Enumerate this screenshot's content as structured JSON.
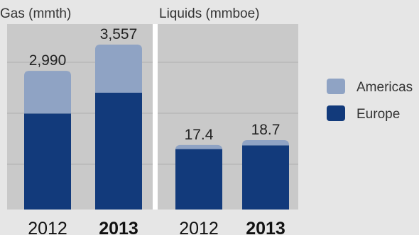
{
  "chart_data": [
    {
      "type": "bar",
      "stacked": true,
      "title": "Gas (mmth)",
      "categories": [
        "2012",
        "2013"
      ],
      "bold_categories": [
        "2013"
      ],
      "totals": [
        2990,
        3557
      ],
      "total_labels": [
        "2,990",
        "3,557"
      ],
      "series": [
        {
          "name": "Europe",
          "values": [
            2070,
            2520
          ]
        },
        {
          "name": "Americas",
          "values": [
            920,
            1037
          ]
        }
      ],
      "ylim": [
        0,
        4000
      ],
      "grid": true
    },
    {
      "type": "bar",
      "stacked": true,
      "title": "Liquids (mmboe)",
      "categories": [
        "2012",
        "2013"
      ],
      "bold_categories": [
        "2013"
      ],
      "totals": [
        17.4,
        18.7
      ],
      "total_labels": [
        "17.4",
        "18.7"
      ],
      "series": [
        {
          "name": "Europe",
          "values": [
            16.3,
            17.3
          ]
        },
        {
          "name": "Americas",
          "values": [
            1.1,
            1.4
          ]
        }
      ],
      "ylim": [
        0,
        50
      ],
      "grid": true
    }
  ],
  "legend": {
    "placement": "right",
    "items": [
      {
        "name": "Americas",
        "color": "#8fa3c4"
      },
      {
        "name": "Europe",
        "color": "#123a7b"
      }
    ]
  },
  "colors": {
    "Europe": "#123a7b",
    "Americas": "#8fa3c4",
    "panel": "#c9c9c9",
    "grid": "#b0b0b0",
    "background": "#e6e6e6",
    "divider": "#ffffff"
  }
}
